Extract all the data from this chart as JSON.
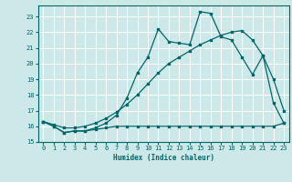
{
  "xlabel": "Humidex (Indice chaleur)",
  "bg_color": "#cce8e8",
  "grid_color": "#ffffff",
  "line_color": "#006666",
  "xlim": [
    -0.5,
    23.5
  ],
  "ylim": [
    15.0,
    23.7
  ],
  "xticks": [
    0,
    1,
    2,
    3,
    4,
    5,
    6,
    7,
    8,
    9,
    10,
    11,
    12,
    13,
    14,
    15,
    16,
    17,
    18,
    19,
    20,
    21,
    22,
    23
  ],
  "yticks": [
    15,
    16,
    17,
    18,
    19,
    20,
    21,
    22,
    23
  ],
  "line1_x": [
    0,
    1,
    2,
    3,
    4,
    5,
    6,
    7,
    8,
    9,
    10,
    11,
    12,
    13,
    14,
    15,
    16,
    17,
    18,
    19,
    20,
    21,
    22,
    23
  ],
  "line1_y": [
    16.3,
    16.0,
    15.6,
    15.7,
    15.7,
    15.8,
    15.9,
    16.0,
    16.0,
    16.0,
    16.0,
    16.0,
    16.0,
    16.0,
    16.0,
    16.0,
    16.0,
    16.0,
    16.0,
    16.0,
    16.0,
    16.0,
    16.0,
    16.2
  ],
  "line2_x": [
    0,
    1,
    2,
    3,
    4,
    5,
    6,
    7,
    8,
    9,
    10,
    11,
    12,
    13,
    14,
    15,
    16,
    17,
    18,
    19,
    20,
    21,
    22,
    23
  ],
  "line2_y": [
    16.3,
    16.0,
    15.6,
    15.7,
    15.7,
    15.9,
    16.2,
    16.7,
    17.8,
    19.4,
    20.4,
    22.2,
    21.4,
    21.3,
    21.2,
    23.3,
    23.2,
    21.7,
    21.5,
    20.4,
    19.3,
    20.5,
    17.5,
    16.2
  ],
  "line3_x": [
    0,
    1,
    2,
    3,
    4,
    5,
    6,
    7,
    8,
    9,
    10,
    11,
    12,
    13,
    14,
    15,
    16,
    17,
    18,
    19,
    20,
    21,
    22,
    23
  ],
  "line3_y": [
    16.3,
    16.1,
    15.9,
    15.9,
    16.0,
    16.2,
    16.5,
    16.9,
    17.4,
    18.0,
    18.7,
    19.4,
    20.0,
    20.4,
    20.8,
    21.2,
    21.5,
    21.8,
    22.0,
    22.1,
    21.5,
    20.5,
    19.0,
    17.0
  ]
}
